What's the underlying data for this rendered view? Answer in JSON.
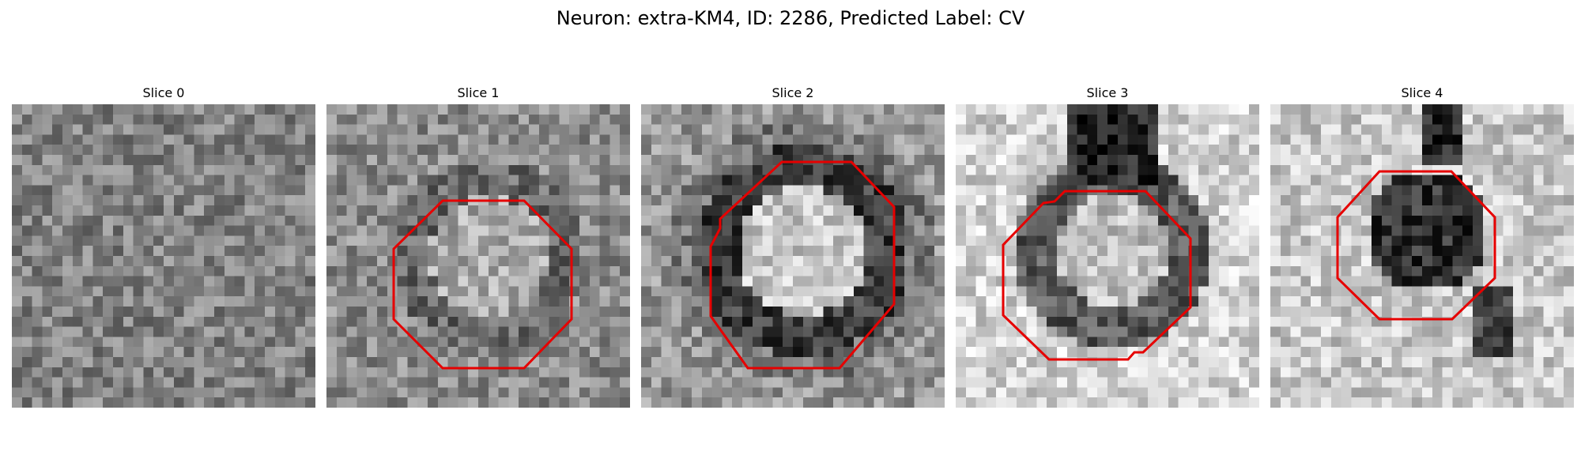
{
  "figure": {
    "title": "Neuron: extra-KM4, ID: 2286, Predicted Label: CV"
  },
  "slices": [
    {
      "label": "Slice 0",
      "has_contour": false
    },
    {
      "label": "Slice 1",
      "has_contour": true
    },
    {
      "label": "Slice 2",
      "has_contour": true
    },
    {
      "label": "Slice 3",
      "has_contour": true
    },
    {
      "label": "Slice 4",
      "has_contour": true
    }
  ],
  "contour_color": "#e60000",
  "image_colormap": "grayscale"
}
